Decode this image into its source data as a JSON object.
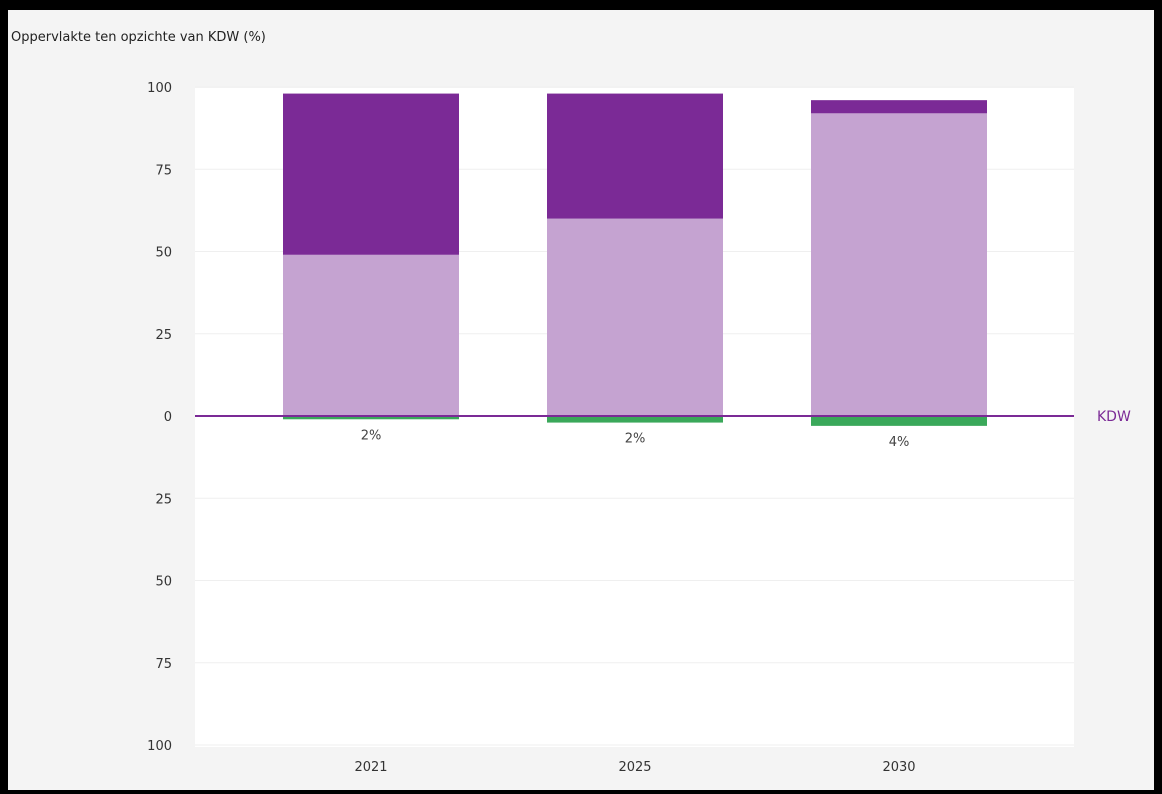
{
  "chart_data": {
    "type": "bar",
    "title": "Oppervlakte ten opzichte van KDW (%)",
    "categories": [
      "2021",
      "2025",
      "2030"
    ],
    "series": [
      {
        "values": [
          49,
          60,
          92
        ],
        "color": "#c5a3d1",
        "direction": "up"
      },
      {
        "values": [
          49,
          38,
          4
        ],
        "color": "#7b2a96",
        "direction": "up"
      },
      {
        "values": [
          1,
          2,
          3
        ],
        "color": "#3aa85a",
        "direction": "down"
      }
    ],
    "data_labels": [
      "2%",
      "2%",
      "4%"
    ],
    "y_ticks_upper": [
      "100",
      "75",
      "50",
      "25",
      "0"
    ],
    "y_ticks_lower": [
      "25",
      "50",
      "75",
      "100"
    ],
    "ylim": [
      -100,
      100
    ],
    "reference_line": {
      "value": 0,
      "label": "KDW",
      "color": "#7b2a96"
    },
    "grid": true
  }
}
